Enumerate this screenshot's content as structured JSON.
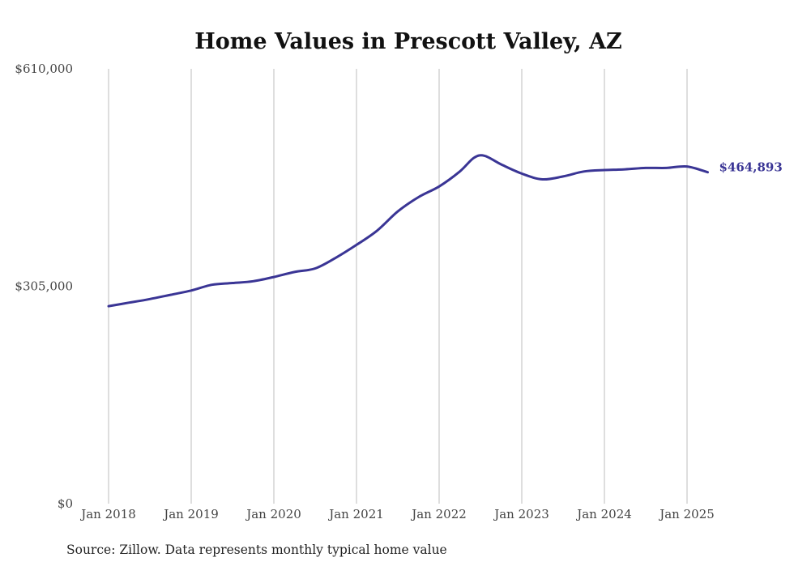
{
  "chart_data": {
    "type": "line",
    "title": "Home Values in Prescott Valley, AZ",
    "xlabel": "",
    "ylabel": "",
    "ylim": [
      0,
      610000
    ],
    "yticks": [
      {
        "value": 0,
        "label": "$0"
      },
      {
        "value": 305000,
        "label": "$305,000"
      },
      {
        "value": 610000,
        "label": "$610,000"
      }
    ],
    "xticks": [
      {
        "value": 2018.0,
        "label": "Jan 2018"
      },
      {
        "value": 2019.0,
        "label": "Jan 2019"
      },
      {
        "value": 2020.0,
        "label": "Jan 2020"
      },
      {
        "value": 2021.0,
        "label": "Jan 2021"
      },
      {
        "value": 2022.0,
        "label": "Jan 2022"
      },
      {
        "value": 2023.0,
        "label": "Jan 2023"
      },
      {
        "value": 2024.0,
        "label": "Jan 2024"
      },
      {
        "value": 2025.0,
        "label": "Jan 2025"
      }
    ],
    "xlim": [
      2018.0,
      2025.25
    ],
    "grid": "vertical",
    "series": [
      {
        "color": "#3a3595",
        "end_label": "$464,893",
        "points": [
          [
            2018.0,
            277000
          ],
          [
            2018.25,
            282000
          ],
          [
            2018.5,
            287000
          ],
          [
            2018.75,
            293000
          ],
          [
            2019.0,
            299000
          ],
          [
            2019.25,
            307000
          ],
          [
            2019.5,
            309500
          ],
          [
            2019.75,
            312000
          ],
          [
            2020.0,
            318000
          ],
          [
            2020.25,
            325000
          ],
          [
            2020.5,
            330000
          ],
          [
            2020.75,
            345000
          ],
          [
            2021.0,
            363000
          ],
          [
            2021.25,
            383000
          ],
          [
            2021.5,
            410000
          ],
          [
            2021.75,
            430000
          ],
          [
            2022.0,
            445000
          ],
          [
            2022.25,
            466000
          ],
          [
            2022.42,
            485000
          ],
          [
            2022.55,
            488000
          ],
          [
            2022.75,
            476000
          ],
          [
            2023.0,
            463000
          ],
          [
            2023.25,
            455000
          ],
          [
            2023.5,
            459000
          ],
          [
            2023.75,
            466000
          ],
          [
            2024.0,
            468000
          ],
          [
            2024.25,
            469000
          ],
          [
            2024.5,
            471000
          ],
          [
            2024.75,
            471000
          ],
          [
            2025.0,
            473000
          ],
          [
            2025.25,
            464893
          ]
        ]
      }
    ]
  },
  "footer": {
    "source": "Source: Zillow. Data represents monthly typical home value"
  }
}
